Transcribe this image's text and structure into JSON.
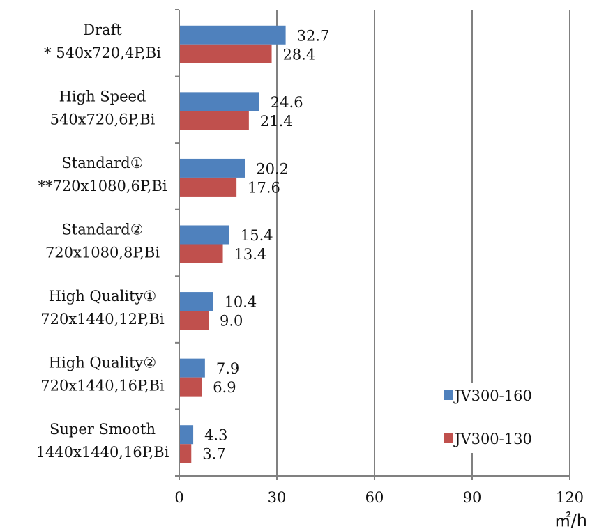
{
  "chart_data": {
    "type": "bar",
    "orientation": "horizontal",
    "categories": [
      [
        "Draft",
        "* 540x720,4P,Bi"
      ],
      [
        "High Speed",
        "540x720,6P,Bi"
      ],
      [
        "Standard①",
        "**720x1080,6P,Bi"
      ],
      [
        "Standard②",
        "720x1080,8P,Bi"
      ],
      [
        "High Quality①",
        "720x1440,12P,Bi"
      ],
      [
        "High Quality②",
        "720x1440,16P,Bi"
      ],
      [
        "Super Smooth",
        "1440x1440,16P,Bi"
      ]
    ],
    "series": [
      {
        "name": "JV300-160",
        "color": "#4f81bd",
        "values": [
          32.7,
          24.6,
          20.2,
          15.4,
          10.4,
          7.9,
          4.3
        ],
        "labels": [
          "32.7",
          "24.6",
          "20.2",
          "15.4",
          "10.4",
          "7.9",
          "4.3"
        ]
      },
      {
        "name": "JV300-130",
        "color": "#c0504d",
        "values": [
          28.4,
          21.4,
          17.6,
          13.4,
          9.0,
          6.9,
          3.7
        ],
        "labels": [
          "28.4",
          "21.4",
          "17.6",
          "13.4",
          "9.0",
          "6.9",
          "3.7"
        ]
      }
    ],
    "xlim": [
      0,
      120
    ],
    "xticks": [
      "0",
      "30",
      "60",
      "90",
      "120"
    ],
    "xlabel": "㎡/h",
    "ylabel": "",
    "title": "",
    "grid": "vertical",
    "legend": "bottom-right"
  }
}
